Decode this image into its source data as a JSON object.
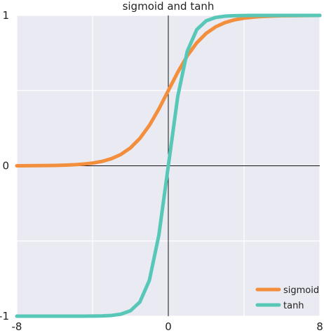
{
  "chart_data": {
    "type": "line",
    "title": "sigmoid and tanh",
    "xlabel": "",
    "ylabel": "",
    "xlim": [
      -8,
      8
    ],
    "ylim": [
      -1,
      1
    ],
    "x_ticks": [
      "-8",
      "0",
      "8"
    ],
    "y_ticks": [
      "-1",
      "0",
      "1"
    ],
    "grid": true,
    "legend_position": "bottom-right",
    "series": [
      {
        "name": "sigmoid",
        "color": "#F28E3C",
        "x": [
          -8,
          -7.5,
          -7,
          -6.5,
          -6,
          -5.5,
          -5,
          -4.5,
          -4,
          -3.5,
          -3,
          -2.5,
          -2,
          -1.5,
          -1,
          -0.5,
          0,
          0.5,
          1,
          1.5,
          2,
          2.5,
          3,
          3.5,
          4,
          4.5,
          5,
          5.5,
          6,
          6.5,
          7,
          7.5,
          8
        ],
        "values": [
          0.0003,
          0.0006,
          0.0009,
          0.0015,
          0.0025,
          0.0041,
          0.0067,
          0.011,
          0.018,
          0.0293,
          0.0474,
          0.0759,
          0.1192,
          0.1824,
          0.2689,
          0.3775,
          0.5,
          0.6225,
          0.7311,
          0.8176,
          0.8808,
          0.9241,
          0.9526,
          0.9707,
          0.982,
          0.989,
          0.9933,
          0.9959,
          0.9975,
          0.9985,
          0.9991,
          0.9994,
          0.9997
        ]
      },
      {
        "name": "tanh",
        "color": "#57C7B7",
        "x": [
          -8,
          -7.5,
          -7,
          -6.5,
          -6,
          -5.5,
          -5,
          -4.5,
          -4,
          -3.5,
          -3,
          -2.5,
          -2,
          -1.5,
          -1,
          -0.5,
          0,
          0.5,
          1,
          1.5,
          2,
          2.5,
          3,
          3.5,
          4,
          4.5,
          5,
          5.5,
          6,
          6.5,
          7,
          7.5,
          8
        ],
        "values": [
          -1.0,
          -1.0,
          -1.0,
          -1.0,
          -1.0,
          -1.0,
          -0.9999,
          -0.9998,
          -0.9993,
          -0.9982,
          -0.9951,
          -0.9866,
          -0.964,
          -0.9051,
          -0.7616,
          -0.4621,
          0.0,
          0.4621,
          0.7616,
          0.9051,
          0.964,
          0.9866,
          0.9951,
          0.9982,
          0.9993,
          0.9998,
          0.9999,
          1.0,
          1.0,
          1.0,
          1.0,
          1.0,
          1.0
        ]
      }
    ]
  }
}
